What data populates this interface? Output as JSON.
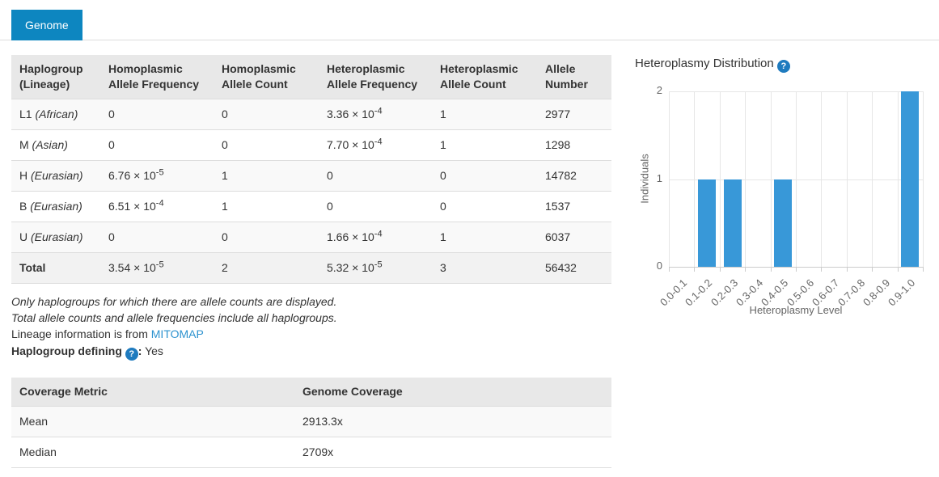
{
  "tab": {
    "label": "Genome"
  },
  "colors": {
    "tab_blue": "#0d86c0",
    "bar_blue": "#3898d8",
    "help_icon_blue": "#1f7bbf",
    "link_blue": "#2e93cf",
    "table_header_bg": "#e8e8e8",
    "stripe_bg": "#f9f9f9",
    "total_row_bg": "#f2f2f2"
  },
  "haplo_table": {
    "headers": [
      "Haplogroup (Lineage)",
      "Homoplasmic Allele Frequency",
      "Homoplasmic Allele Count",
      "Heteroplasmic Allele Frequency",
      "Heteroplasmic Allele Count",
      "Allele Number"
    ],
    "rows": [
      {
        "name": "L1",
        "lineage": "(African)",
        "hom_freq": "0",
        "hom_count": "0",
        "het_freq": "3.36 × 10^-4",
        "het_count": "1",
        "allele_number": "2977",
        "is_total": false
      },
      {
        "name": "M",
        "lineage": "(Asian)",
        "hom_freq": "0",
        "hom_count": "0",
        "het_freq": "7.70 × 10^-4",
        "het_count": "1",
        "allele_number": "1298",
        "is_total": false
      },
      {
        "name": "H",
        "lineage": "(Eurasian)",
        "hom_freq": "6.76 × 10^-5",
        "hom_count": "1",
        "het_freq": "0",
        "het_count": "0",
        "allele_number": "14782",
        "is_total": false
      },
      {
        "name": "B",
        "lineage": "(Eurasian)",
        "hom_freq": "6.51 × 10^-4",
        "hom_count": "1",
        "het_freq": "0",
        "het_count": "0",
        "allele_number": "1537",
        "is_total": false
      },
      {
        "name": "U",
        "lineage": "(Eurasian)",
        "hom_freq": "0",
        "hom_count": "0",
        "het_freq": "1.66 × 10^-4",
        "het_count": "1",
        "allele_number": "6037",
        "is_total": false
      },
      {
        "name": "Total",
        "lineage": "",
        "hom_freq": "3.54 × 10^-5",
        "hom_count": "2",
        "het_freq": "5.32 × 10^-5",
        "het_count": "3",
        "allele_number": "56432",
        "is_total": true
      }
    ]
  },
  "notes": {
    "line1": "Only haplogroups for which there are allele counts are displayed.",
    "line2": "Total allele counts and allele frequencies include all haplogroups.",
    "line3_prefix": "Lineage information is from ",
    "line3_link": "MITOMAP",
    "defining_label": "Haplogroup defining",
    "defining_help_glyph": "?",
    "defining_colon": ":",
    "defining_value": "Yes"
  },
  "coverage_table": {
    "headers": [
      "Coverage Metric",
      "Genome Coverage"
    ],
    "rows": [
      {
        "metric": "Mean",
        "value": "2913.3x"
      },
      {
        "metric": "Median",
        "value": "2709x"
      }
    ]
  },
  "chart_data": {
    "type": "bar",
    "title": "Heteroplasmy Distribution",
    "help_glyph": "?",
    "categories": [
      "0.0-0.1",
      "0.1-0.2",
      "0.2-0.3",
      "0.3-0.4",
      "0.4-0.5",
      "0.5-0.6",
      "0.6-0.7",
      "0.7-0.8",
      "0.8-0.9",
      "0.9-1.0"
    ],
    "values": [
      0,
      1,
      1,
      0,
      1,
      0,
      0,
      0,
      0,
      2
    ],
    "xlabel": "Heteroplasmy Level",
    "ylabel": "Individuals",
    "ylim": [
      0,
      2
    ],
    "yticks": [
      0,
      1,
      2
    ],
    "grid": true,
    "legend": "none",
    "bar_color": "#3898d8"
  }
}
